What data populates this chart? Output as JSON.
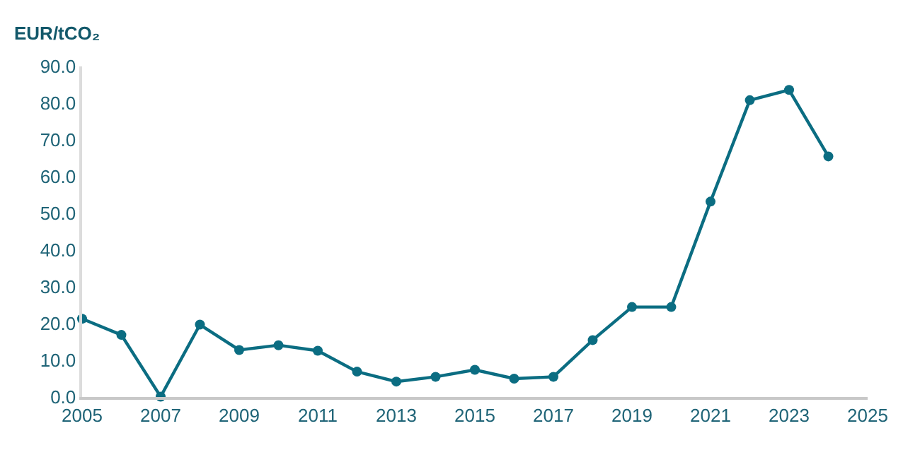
{
  "chart_data": {
    "type": "line",
    "ylabel": "EUR/tCO₂",
    "x": [
      2005,
      2006,
      2007,
      2008,
      2009,
      2010,
      2011,
      2012,
      2013,
      2014,
      2015,
      2016,
      2017,
      2018,
      2019,
      2020,
      2021,
      2022,
      2023,
      2024
    ],
    "series": [
      {
        "color": "#0b6d82",
        "values": [
          21.3,
          16.9,
          0.1,
          19.7,
          12.8,
          14.1,
          12.6,
          6.9,
          4.2,
          5.5,
          7.4,
          5.0,
          5.5,
          15.5,
          24.5,
          24.5,
          53.2,
          80.8,
          83.6,
          65.5
        ]
      }
    ],
    "xlim": [
      2005,
      2025
    ],
    "xticks": [
      2005,
      2007,
      2009,
      2011,
      2013,
      2015,
      2017,
      2019,
      2021,
      2023,
      2025
    ],
    "ylim": [
      0,
      90
    ],
    "yticks": [
      {
        "value": 0,
        "label": "0.0"
      },
      {
        "value": 10,
        "label": "10.0"
      },
      {
        "value": 20,
        "label": "20.0"
      },
      {
        "value": 30,
        "label": "30.0"
      },
      {
        "value": 40,
        "label": "40.0"
      },
      {
        "value": 50,
        "label": "50.0"
      },
      {
        "value": 60,
        "label": "60.0"
      },
      {
        "value": 70,
        "label": "70.0"
      },
      {
        "value": 80,
        "label": "80.0"
      },
      {
        "value": 90,
        "label": "90.0"
      }
    ],
    "marker": "circle",
    "line_style": "solid"
  }
}
